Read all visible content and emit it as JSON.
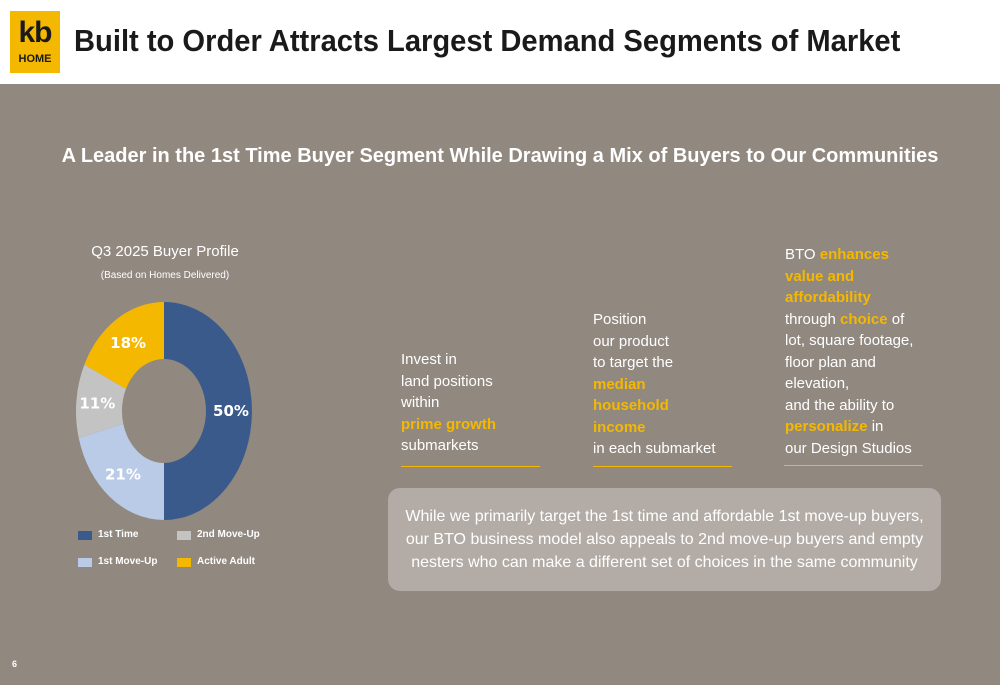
{
  "header": {
    "logo": {
      "top": "kb",
      "bottom": "HOME",
      "color": "#f5b800"
    },
    "title": "Built to Order Attracts Largest Demand Segments of Market"
  },
  "subtitle": "A Leader in the 1st Time Buyer Segment While Drawing a Mix of Buyers to Our Communities",
  "chart_data": {
    "type": "pie",
    "title": "Q3 2025 Buyer Profile",
    "subtitle": "(Based on Homes Delivered)",
    "slices": [
      {
        "name": "1st Time",
        "value": 50,
        "label": "50%",
        "color": "#3a5a8c"
      },
      {
        "name": "1st Move-Up",
        "value": 21,
        "label": "21%",
        "color": "#b9cbe6"
      },
      {
        "name": "2nd Move-Up",
        "value": 11,
        "label": "11%",
        "color": "#c3c3c3"
      },
      {
        "name": "Active Adult",
        "value": 18,
        "label": "18%",
        "color": "#f5b800"
      }
    ],
    "legend": [
      "1st Time",
      "2nd Move-Up",
      "1st Move-Up",
      "Active Adult"
    ],
    "legend_placement": "bottom"
  },
  "columns": {
    "col1": {
      "lines": [
        "Invest in",
        "land positions",
        "within"
      ],
      "highlight": "prime growth",
      "after": "submarkets"
    },
    "col2": {
      "lines": [
        "Position",
        "our product",
        "to target the"
      ],
      "highlight": [
        "median",
        "household",
        "income"
      ],
      "after": "in each submarket"
    },
    "col3": {
      "l1_pre": "BTO ",
      "l1_hl": "enhances",
      "hl_lines": [
        "value and",
        "affordability"
      ],
      "l4_pre": "through ",
      "l4_hl": "choice",
      "l4_post": " of",
      "lines": [
        "lot, square footage,",
        "floor plan and",
        "elevation,",
        "and the ability to"
      ],
      "l9_hl": "personalize",
      "l9_post": " in",
      "last": "our Design Studios"
    }
  },
  "callout": "While we primarily target the 1st time and affordable 1st move-up buyers, our BTO business model also appeals to 2nd move-up buyers and empty nesters who can make a different set of choices in the same community",
  "page_number": "6"
}
